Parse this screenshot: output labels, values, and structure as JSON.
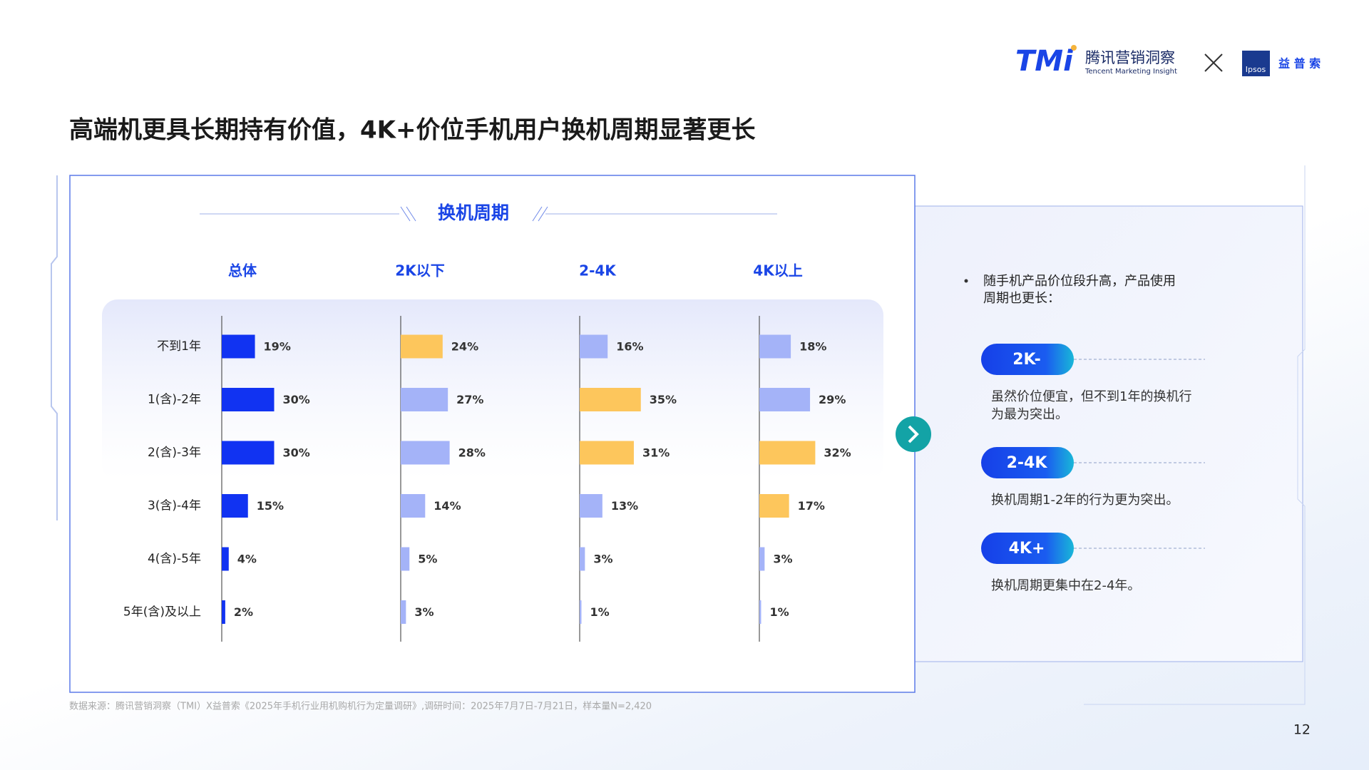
{
  "header": {
    "logo_mark": "TMi",
    "logo_name": "腾讯营销洞察",
    "logo_sub": "Tencent Marketing Insight",
    "partner_mark": "Ipsos",
    "partner_name": "益 普 索"
  },
  "title": "高端机更具长期持有价值，4K+价位手机用户换机周期显著更长",
  "panel_title": "换机周期",
  "chart_data": [
    {
      "type": "bar",
      "orientation": "horizontal",
      "title": "总体",
      "categories": [
        "不到1年",
        "1(含)-2年",
        "2(含)-3年",
        "3(含)-4年",
        "4(含)-5年",
        "5年(含)及以上"
      ],
      "values": [
        19,
        30,
        30,
        15,
        4,
        2
      ],
      "value_labels": [
        "19%",
        "30%",
        "30%",
        "15%",
        "4%",
        "2%"
      ],
      "colors": [
        "#1133f2",
        "#1133f2",
        "#1133f2",
        "#1133f2",
        "#1133f2",
        "#1133f2"
      ],
      "xlim": [
        0,
        100
      ]
    },
    {
      "type": "bar",
      "orientation": "horizontal",
      "title": "2K以下",
      "values": [
        24,
        27,
        28,
        14,
        5,
        3
      ],
      "value_labels": [
        "24%",
        "27%",
        "28%",
        "14%",
        "5%",
        "3%"
      ],
      "colors": [
        "#fdc65c",
        "#a4b3f8",
        "#a4b3f8",
        "#a4b3f8",
        "#a4b3f8",
        "#a4b3f8"
      ],
      "xlim": [
        0,
        100
      ]
    },
    {
      "type": "bar",
      "orientation": "horizontal",
      "title": "2-4K",
      "values": [
        16,
        35,
        31,
        13,
        3,
        1
      ],
      "value_labels": [
        "16%",
        "35%",
        "31%",
        "13%",
        "3%",
        "1%"
      ],
      "colors": [
        "#a4b3f8",
        "#fdc65c",
        "#fdc65c",
        "#a4b3f8",
        "#a4b3f8",
        "#a4b3f8"
      ],
      "xlim": [
        0,
        100
      ]
    },
    {
      "type": "bar",
      "orientation": "horizontal",
      "title": "4K以上",
      "values": [
        18,
        29,
        32,
        17,
        3,
        1
      ],
      "value_labels": [
        "18%",
        "29%",
        "32%",
        "17%",
        "3%",
        "1%"
      ],
      "colors": [
        "#a4b3f8",
        "#a4b3f8",
        "#fdc65c",
        "#fdc65c",
        "#a4b3f8",
        "#a4b3f8"
      ],
      "xlim": [
        0,
        100
      ]
    }
  ],
  "notes": {
    "intro": [
      "随手机产品价位段升高，产品使用",
      "周期也更长："
    ],
    "items": [
      {
        "tag": "2K-",
        "lines": [
          "虽然价位便宜，但不到1年的换机行",
          "为最为突出。"
        ]
      },
      {
        "tag": "2-4K",
        "lines": [
          "换机周期1-2年的行为更为突出。"
        ]
      },
      {
        "tag": "4K+",
        "lines": [
          "换机周期更集中在2-4年。"
        ]
      }
    ]
  },
  "source": "数据来源：腾讯营销洞察（TMI）X益普索《2025年手机行业用机购机行为定量调研》,调研时间：2025年7月7日-7月21日，样本量N=2,420",
  "page_number": "12"
}
